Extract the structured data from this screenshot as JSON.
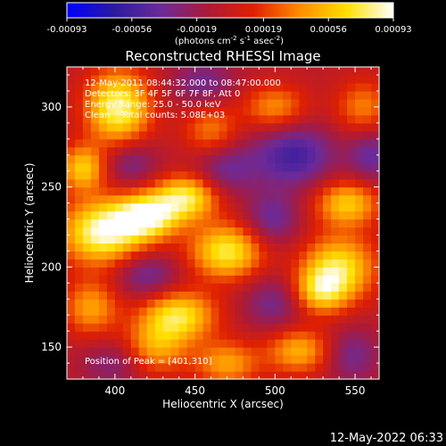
{
  "colorbar": {
    "tick_labels": [
      "-0.00093",
      "-0.00056",
      "-0.00019",
      "0.00019",
      "0.00056",
      "0.00093"
    ],
    "tick_values": [
      -0.00093,
      -0.00056,
      -0.00019,
      0.00019,
      0.00056,
      0.00093
    ],
    "range": [
      -0.00093,
      0.00093
    ],
    "unit_prefix": "(photons cm",
    "unit_sup1": "-2",
    "unit_mid": " s",
    "unit_sup2": "-1",
    "unit_mid2": " asec",
    "unit_sup3": "-2",
    "unit_suffix": ")"
  },
  "chart_data": {
    "type": "heatmap",
    "title": "Reconstructed RHESSI Image",
    "xlabel": "Heliocentric X (arcsec)",
    "ylabel": "Heliocentric Y (arcsec)",
    "xlim": [
      370,
      565
    ],
    "ylim": [
      130,
      325
    ],
    "x_ticks": [
      400,
      450,
      500,
      550
    ],
    "y_ticks": [
      150,
      200,
      250,
      300
    ],
    "x_tick_labels": [
      "400",
      "450",
      "500",
      "550"
    ],
    "y_tick_labels": [
      "150",
      "200",
      "250",
      "300"
    ],
    "colormap": [
      "#0000ff",
      "#2a1aa0",
      "#6a2a9a",
      "#aa1a3a",
      "#e02000",
      "#ff8c00",
      "#ffe000",
      "#ffffff"
    ],
    "annotation_lines": [
      "12-May-2011 08:44:32.000 to 08:47:00.000",
      "Detectors: 3F 4F 5F 6F 7F 8F, Att 0",
      "Energy Range: 25.0 - 50.0 keV",
      "Clean    Total counts: 5.08E+03"
    ],
    "peak_label": "Position of Peak = [401,310]",
    "peak_position": [
      401,
      310
    ],
    "features": [
      {
        "x": 402,
        "y": 300,
        "v": 0.95,
        "sx": 14,
        "sy": 16
      },
      {
        "x": 392,
        "y": 222,
        "v": 1.0,
        "sx": 18,
        "sy": 14
      },
      {
        "x": 420,
        "y": 232,
        "v": 0.95,
        "sx": 14,
        "sy": 10
      },
      {
        "x": 445,
        "y": 244,
        "v": 0.85,
        "sx": 14,
        "sy": 10
      },
      {
        "x": 380,
        "y": 262,
        "v": 0.7,
        "sx": 10,
        "sy": 10
      },
      {
        "x": 470,
        "y": 210,
        "v": 0.85,
        "sx": 16,
        "sy": 12
      },
      {
        "x": 440,
        "y": 170,
        "v": 0.8,
        "sx": 16,
        "sy": 11
      },
      {
        "x": 425,
        "y": 150,
        "v": 0.55,
        "sx": 14,
        "sy": 12
      },
      {
        "x": 540,
        "y": 200,
        "v": 0.8,
        "sx": 16,
        "sy": 14
      },
      {
        "x": 545,
        "y": 240,
        "v": 0.7,
        "sx": 14,
        "sy": 10
      },
      {
        "x": 528,
        "y": 185,
        "v": 0.65,
        "sx": 12,
        "sy": 10
      },
      {
        "x": 515,
        "y": 148,
        "v": 0.6,
        "sx": 14,
        "sy": 10
      },
      {
        "x": 470,
        "y": 140,
        "v": 0.55,
        "sx": 14,
        "sy": 10
      },
      {
        "x": 460,
        "y": 285,
        "v": 0.45,
        "sx": 12,
        "sy": 12
      },
      {
        "x": 500,
        "y": 300,
        "v": 0.5,
        "sx": 14,
        "sy": 10
      },
      {
        "x": 385,
        "y": 175,
        "v": 0.55,
        "sx": 12,
        "sy": 12
      },
      {
        "x": 555,
        "y": 300,
        "v": 0.45,
        "sx": 12,
        "sy": 12
      },
      {
        "x": 500,
        "y": 178,
        "v": -0.35,
        "sx": 14,
        "sy": 12
      },
      {
        "x": 512,
        "y": 270,
        "v": -0.55,
        "sx": 18,
        "sy": 14
      },
      {
        "x": 468,
        "y": 262,
        "v": -0.4,
        "sx": 14,
        "sy": 12
      },
      {
        "x": 498,
        "y": 230,
        "v": -0.4,
        "sx": 12,
        "sy": 12
      },
      {
        "x": 420,
        "y": 195,
        "v": -0.4,
        "sx": 14,
        "sy": 10
      },
      {
        "x": 410,
        "y": 265,
        "v": -0.35,
        "sx": 12,
        "sy": 10
      },
      {
        "x": 560,
        "y": 270,
        "v": -0.4,
        "sx": 10,
        "sy": 12
      },
      {
        "x": 455,
        "y": 315,
        "v": -0.35,
        "sx": 14,
        "sy": 10
      },
      {
        "x": 548,
        "y": 145,
        "v": -0.35,
        "sx": 12,
        "sy": 12
      },
      {
        "x": 400,
        "y": 140,
        "v": -0.3,
        "sx": 14,
        "sy": 10
      }
    ]
  },
  "timestamp": "12-May-2022 06:33"
}
